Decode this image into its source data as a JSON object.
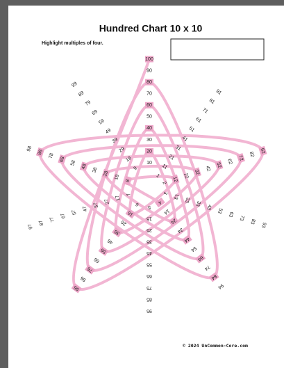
{
  "header": {
    "title": "Hundred Chart 10 x 10",
    "instruction": "Highlight multiples of four."
  },
  "numbers": [
    1,
    2,
    3,
    4,
    5,
    6,
    7,
    8,
    9,
    10,
    11,
    12,
    13,
    14,
    15,
    16,
    17,
    18,
    19,
    20,
    21,
    22,
    23,
    24,
    25,
    26,
    27,
    28,
    29,
    30,
    31,
    32,
    33,
    34,
    35,
    36,
    37,
    38,
    39,
    40,
    41,
    42,
    43,
    44,
    45,
    46,
    47,
    48,
    49,
    50,
    51,
    52,
    53,
    54,
    55,
    56,
    57,
    58,
    59,
    60,
    61,
    62,
    63,
    64,
    65,
    66,
    67,
    68,
    69,
    70,
    71,
    72,
    73,
    74,
    75,
    76,
    77,
    78,
    79,
    80,
    81,
    82,
    83,
    84,
    85,
    86,
    87,
    88,
    89,
    90,
    91,
    92,
    93,
    94,
    95,
    96,
    97,
    98,
    99,
    100
  ],
  "footer": "© 2024 UnCommon-Core.com"
}
